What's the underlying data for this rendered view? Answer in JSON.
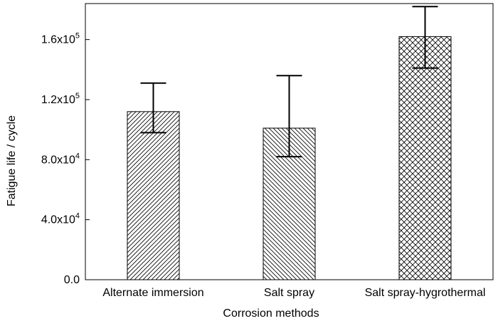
{
  "chart_data": {
    "type": "bar",
    "title": "",
    "xlabel": "Corrosion methods",
    "ylabel": "Fatigue life / cycle",
    "categories": [
      "Alternate immersion",
      "Salt spray",
      "Salt spray-hygrothermal"
    ],
    "values": [
      112000,
      101000,
      162000
    ],
    "error_low": [
      98000,
      82000,
      141000
    ],
    "error_high": [
      131000,
      136000,
      182000
    ],
    "patterns": [
      "diagonal-up",
      "diagonal-down",
      "crosshatch"
    ],
    "ylim": [
      0,
      184000
    ],
    "yticks": [
      {
        "value": 0,
        "mantissa": "0.0",
        "exponent": ""
      },
      {
        "value": 40000,
        "mantissa": "4.0x10",
        "exponent": "4"
      },
      {
        "value": 80000,
        "mantissa": "8.0x10",
        "exponent": "4"
      },
      {
        "value": 120000,
        "mantissa": "1.2x10",
        "exponent": "5"
      },
      {
        "value": 160000,
        "mantissa": "1.6x10",
        "exponent": "5"
      }
    ],
    "grid": false,
    "bar_color": "#ffffff",
    "line_color": "#000000"
  }
}
